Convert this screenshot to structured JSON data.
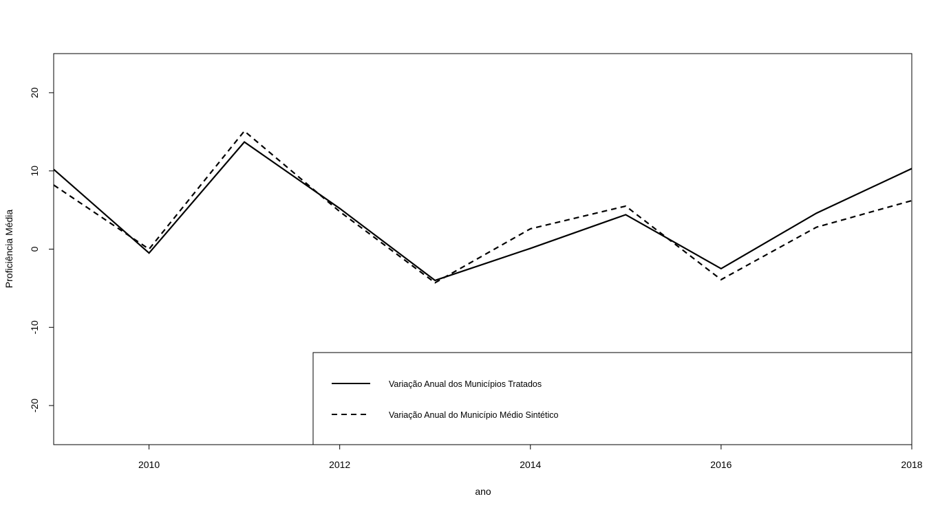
{
  "chart_data": {
    "type": "line",
    "title": "",
    "xlabel": "ano",
    "ylabel": "Proficiência Média",
    "xlim": [
      2009,
      2018
    ],
    "ylim": [
      -25,
      25
    ],
    "x": [
      2009,
      2010,
      2011,
      2012,
      2013,
      2014,
      2015,
      2016,
      2017,
      2018
    ],
    "x_ticks": [
      2010,
      2012,
      2014,
      2016,
      2018
    ],
    "y_ticks": [
      -20,
      -10,
      0,
      10,
      20
    ],
    "series": [
      {
        "name": "Variação Anual dos Municípios Tratados",
        "line_style": "solid",
        "color": "#000000",
        "values": [
          10.2,
          -0.5,
          13.7,
          5.2,
          -4.0,
          0.1,
          4.4,
          -2.5,
          4.6,
          10.3
        ]
      },
      {
        "name": "Variação Anual do Município Médio Sintético",
        "line_style": "dashed",
        "color": "#000000",
        "values": [
          8.2,
          0.0,
          15.1,
          4.8,
          -4.3,
          2.6,
          5.5,
          -3.9,
          2.8,
          6.2
        ]
      }
    ],
    "grid": false,
    "legend_position": "bottom-right",
    "box": true
  }
}
